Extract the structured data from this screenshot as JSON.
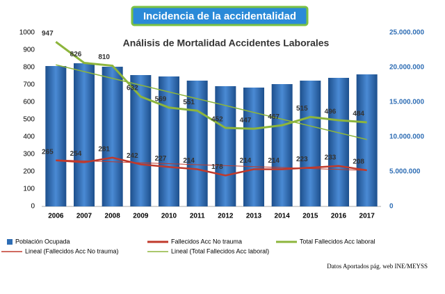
{
  "chart_data": {
    "type": "bar_line",
    "title": "Incidencia de la accidentalidad",
    "subtitle": "Análisis de Mortalidad Accidentes Laborales",
    "source": "Datos Aportados pág. web INE/MEYSS",
    "categories": [
      "2006",
      "2007",
      "2008",
      "2009",
      "2010",
      "2011",
      "2012",
      "2013",
      "2014",
      "2015",
      "2016",
      "2017"
    ],
    "ylim": [
      0,
      1000
    ],
    "yticks": [
      0,
      100,
      200,
      300,
      400,
      500,
      600,
      700,
      800,
      900,
      1000
    ],
    "y2lim": [
      0,
      25000000
    ],
    "y2ticks": [
      0,
      {
        "value": 5000000,
        "label": "5.000.000"
      },
      {
        "value": 10000000,
        "label": "10.000.000"
      },
      {
        "value": 15000000,
        "label": "15.000.000"
      },
      {
        "value": 20000000,
        "label": "20.000.000"
      },
      {
        "value": 25000000,
        "label": "25.000.000"
      }
    ],
    "grid": false,
    "series": [
      {
        "name": "Población Ocupada",
        "type": "bar",
        "axis": "y2",
        "color": "#2e6db4",
        "values": [
          20200000,
          20600000,
          20100000,
          18900000,
          18700000,
          18100000,
          17300000,
          17100000,
          17600000,
          18100000,
          18500000,
          19000000
        ]
      },
      {
        "name": "Fallecidos Acc No trauma",
        "type": "line",
        "color": "#c0392b",
        "width": 2.5,
        "values": [
          265,
          254,
          281,
          242,
          227,
          214,
          178,
          214,
          214,
          223,
          233,
          208
        ]
      },
      {
        "name": "Total Fallecidos Acc laboral",
        "type": "line",
        "color": "#8db53c",
        "width": 3,
        "values": [
          947,
          826,
          810,
          632,
          569,
          551,
          452,
          447,
          467,
          515,
          496,
          484
        ]
      },
      {
        "name": "Lineal (Fallecidos Acc No trauma)",
        "type": "trend",
        "color": "#c0392b",
        "width": 1,
        "values": [
          268,
          262,
          257,
          251,
          246,
          240,
          235,
          229,
          224,
          218,
          213,
          207
        ]
      },
      {
        "name": "Lineal (Total Fallecidos Acc laboral)",
        "type": "trend",
        "color": "#8db53c",
        "width": 1.5,
        "values": [
          815,
          776,
          737,
          698,
          659,
          620,
          581,
          541,
          502,
          463,
          424,
          385
        ]
      }
    ]
  }
}
